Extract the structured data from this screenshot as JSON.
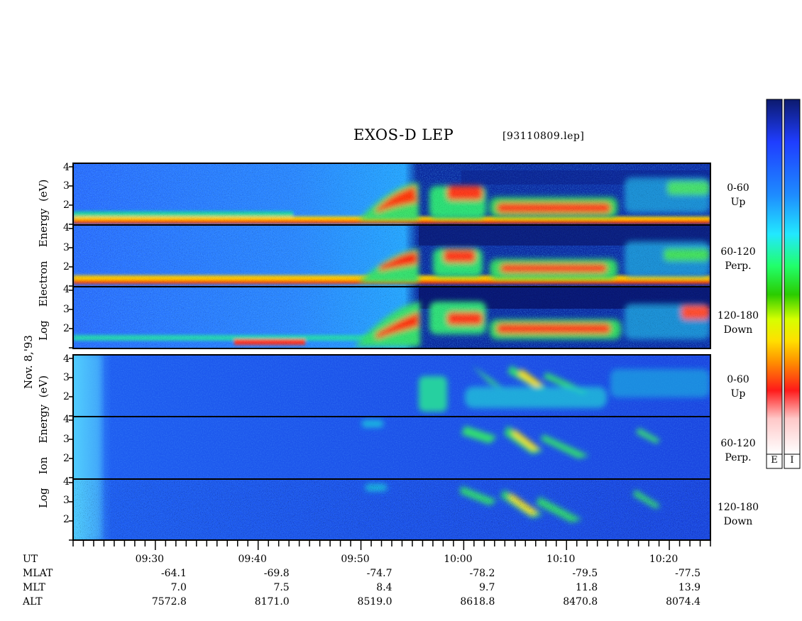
{
  "header": {
    "title": "EXOS-D LEP",
    "file": "[93110809.lep]"
  },
  "axes": {
    "date_label": "Nov. 8,'93",
    "electron_label_lines": [
      "Log",
      "Electron",
      "Energy",
      "(eV)"
    ],
    "ion_label_lines": [
      "Log",
      "Ion",
      "Energy",
      "(eV)"
    ],
    "y_ticks": [
      "4",
      "3",
      "2"
    ],
    "y_ticks_bottom": [
      "4",
      "3",
      "2"
    ]
  },
  "panels": [
    {
      "species": "Electron",
      "pitch": "0-60",
      "dir": "Up"
    },
    {
      "species": "Electron",
      "pitch": "60-120",
      "dir": "Perp."
    },
    {
      "species": "Electron",
      "pitch": "120-180",
      "dir": "Down"
    },
    {
      "species": "Ion",
      "pitch": "0-60",
      "dir": "Up"
    },
    {
      "species": "Ion",
      "pitch": "60-120",
      "dir": "Perp."
    },
    {
      "species": "Ion",
      "pitch": "120-180",
      "dir": "Down"
    }
  ],
  "colorbar": {
    "labels": [
      "E",
      "I"
    ],
    "colors": [
      "#0c1a6e",
      "#1f3dff",
      "#1e8cff",
      "#22e8ff",
      "#21ff6a",
      "#2acc00",
      "#d6ff00",
      "#ffe000",
      "#ff9000",
      "#ff1a1a",
      "#ffc8c8",
      "#ffffff"
    ]
  },
  "chart_data": {
    "type": "heatmap",
    "title": "EXOS-D LEP",
    "file": "[93110809.lep]",
    "xlabel": "UT",
    "ylabel": "Log Energy (eV)",
    "x_ticks": [
      "09:30",
      "09:40",
      "09:50",
      "10:00",
      "10:10",
      "10:20"
    ],
    "xlim": [
      "09:22",
      "10:24"
    ],
    "ylim": [
      1,
      4.1
    ],
    "ephemeris": [
      {
        "name": "UT",
        "values": [
          "09:30",
          "09:40",
          "09:50",
          "10:00",
          "10:10",
          "10:20"
        ]
      },
      {
        "name": "MLAT",
        "values": [
          "-64.1",
          "-69.8",
          "-74.7",
          "-78.2",
          "-79.5",
          "-77.5"
        ]
      },
      {
        "name": "MLT",
        "values": [
          "7.0",
          "7.5",
          "8.4",
          "9.7",
          "11.8",
          "13.9"
        ]
      },
      {
        "name": "ALT",
        "values": [
          "7572.8",
          "8171.0",
          "8519.0",
          "8618.8",
          "8470.8",
          "8074.4"
        ]
      }
    ]
  }
}
